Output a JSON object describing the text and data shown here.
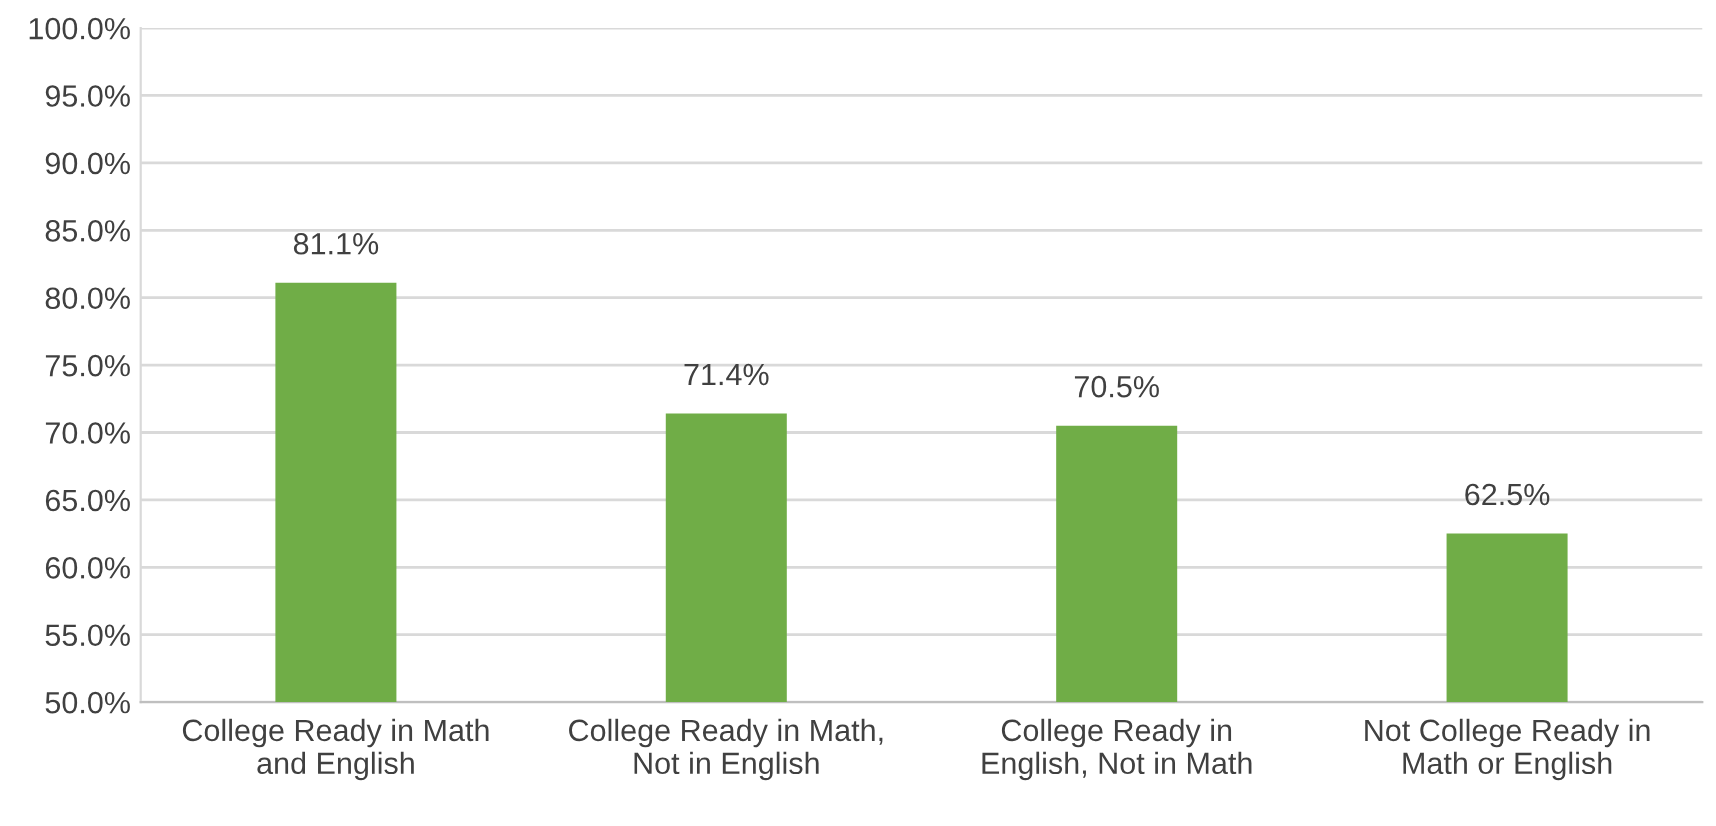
{
  "chart_data": {
    "type": "bar",
    "categories": [
      "College Ready in Math\nand English",
      "College Ready in Math,\nNot in English",
      "College Ready in\nEnglish, Not in Math",
      "Not College Ready in\nMath or English"
    ],
    "values": [
      81.1,
      71.4,
      70.5,
      62.5
    ],
    "value_labels": [
      "81.1%",
      "71.4%",
      "70.5%",
      "62.5%"
    ],
    "color": "#70ad47",
    "ylim": [
      50,
      100
    ],
    "yticks": [
      {
        "value": 50,
        "label": "50.0%"
      },
      {
        "value": 55,
        "label": "55.0%"
      },
      {
        "value": 60,
        "label": "60.0%"
      },
      {
        "value": 65,
        "label": "65.0%"
      },
      {
        "value": 70,
        "label": "70.0%"
      },
      {
        "value": 75,
        "label": "75.0%"
      },
      {
        "value": 80,
        "label": "80.0%"
      },
      {
        "value": 85,
        "label": "85.0%"
      },
      {
        "value": 90,
        "label": "90.0%"
      },
      {
        "value": 95,
        "label": "95.0%"
      },
      {
        "value": 100,
        "label": "100.0%"
      }
    ],
    "grid": "y"
  }
}
